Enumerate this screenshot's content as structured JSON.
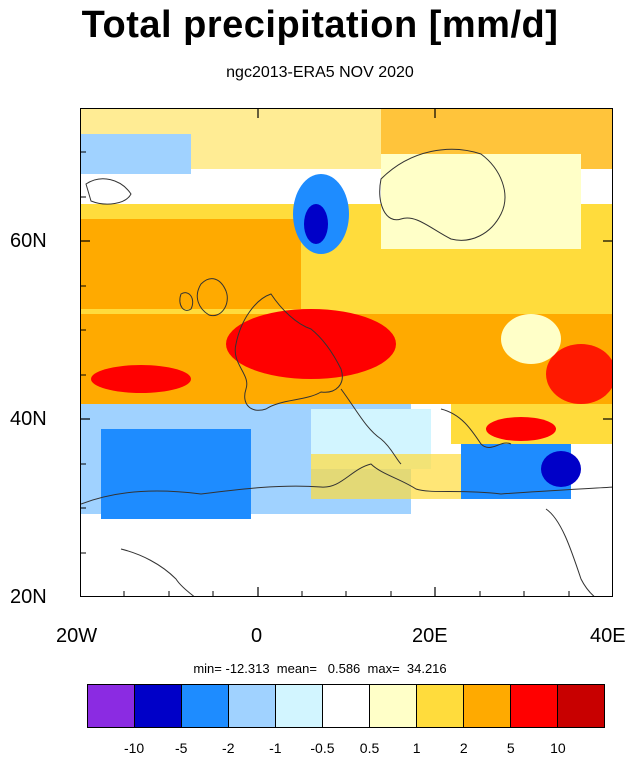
{
  "title": "Total precipitation [mm/d]",
  "subtitle": "ngc2013-ERA5 NOV 2020",
  "map": {
    "projection": "cylindrical",
    "lon_range": [
      -20,
      40
    ],
    "lat_range": [
      20,
      75
    ],
    "lat_ticks": [
      "60N",
      "40N",
      "20N"
    ],
    "lon_ticks": [
      "20W",
      "0",
      "20E",
      "40E"
    ],
    "field": "precipitation difference",
    "region_values": {
      "atlantic_north": 2.0,
      "iceland_norwegian_sea": 1.0,
      "norway_coast": -5.0,
      "british_isles": 2.0,
      "central_europe": 5.0,
      "france_alps": 10.0,
      "scandinavia": 1.0,
      "eastern_europe": 2.0,
      "iberia_atlantic": -2.0,
      "mediterranean": -1.0,
      "east_mediterranean": -5.0,
      "turkey": 5.0,
      "north_africa": 0.0
    }
  },
  "stats": {
    "label": "min= -12.313  mean=   0.586  max=  34.216",
    "min": -12.313,
    "mean": 0.586,
    "max": 34.216
  },
  "colorbar": {
    "colors": [
      "#8b2be2",
      "#0000c8",
      "#1e8cff",
      "#a0d2ff",
      "#d2f5ff",
      "#ffffff",
      "#ffffc8",
      "#ffdc3c",
      "#ffaa00",
      "#ff0000",
      "#c80000"
    ],
    "labels": [
      "-10",
      "-5",
      "-2",
      "-1",
      "-0.5",
      "0.5",
      "1",
      "2",
      "5",
      "10"
    ]
  }
}
